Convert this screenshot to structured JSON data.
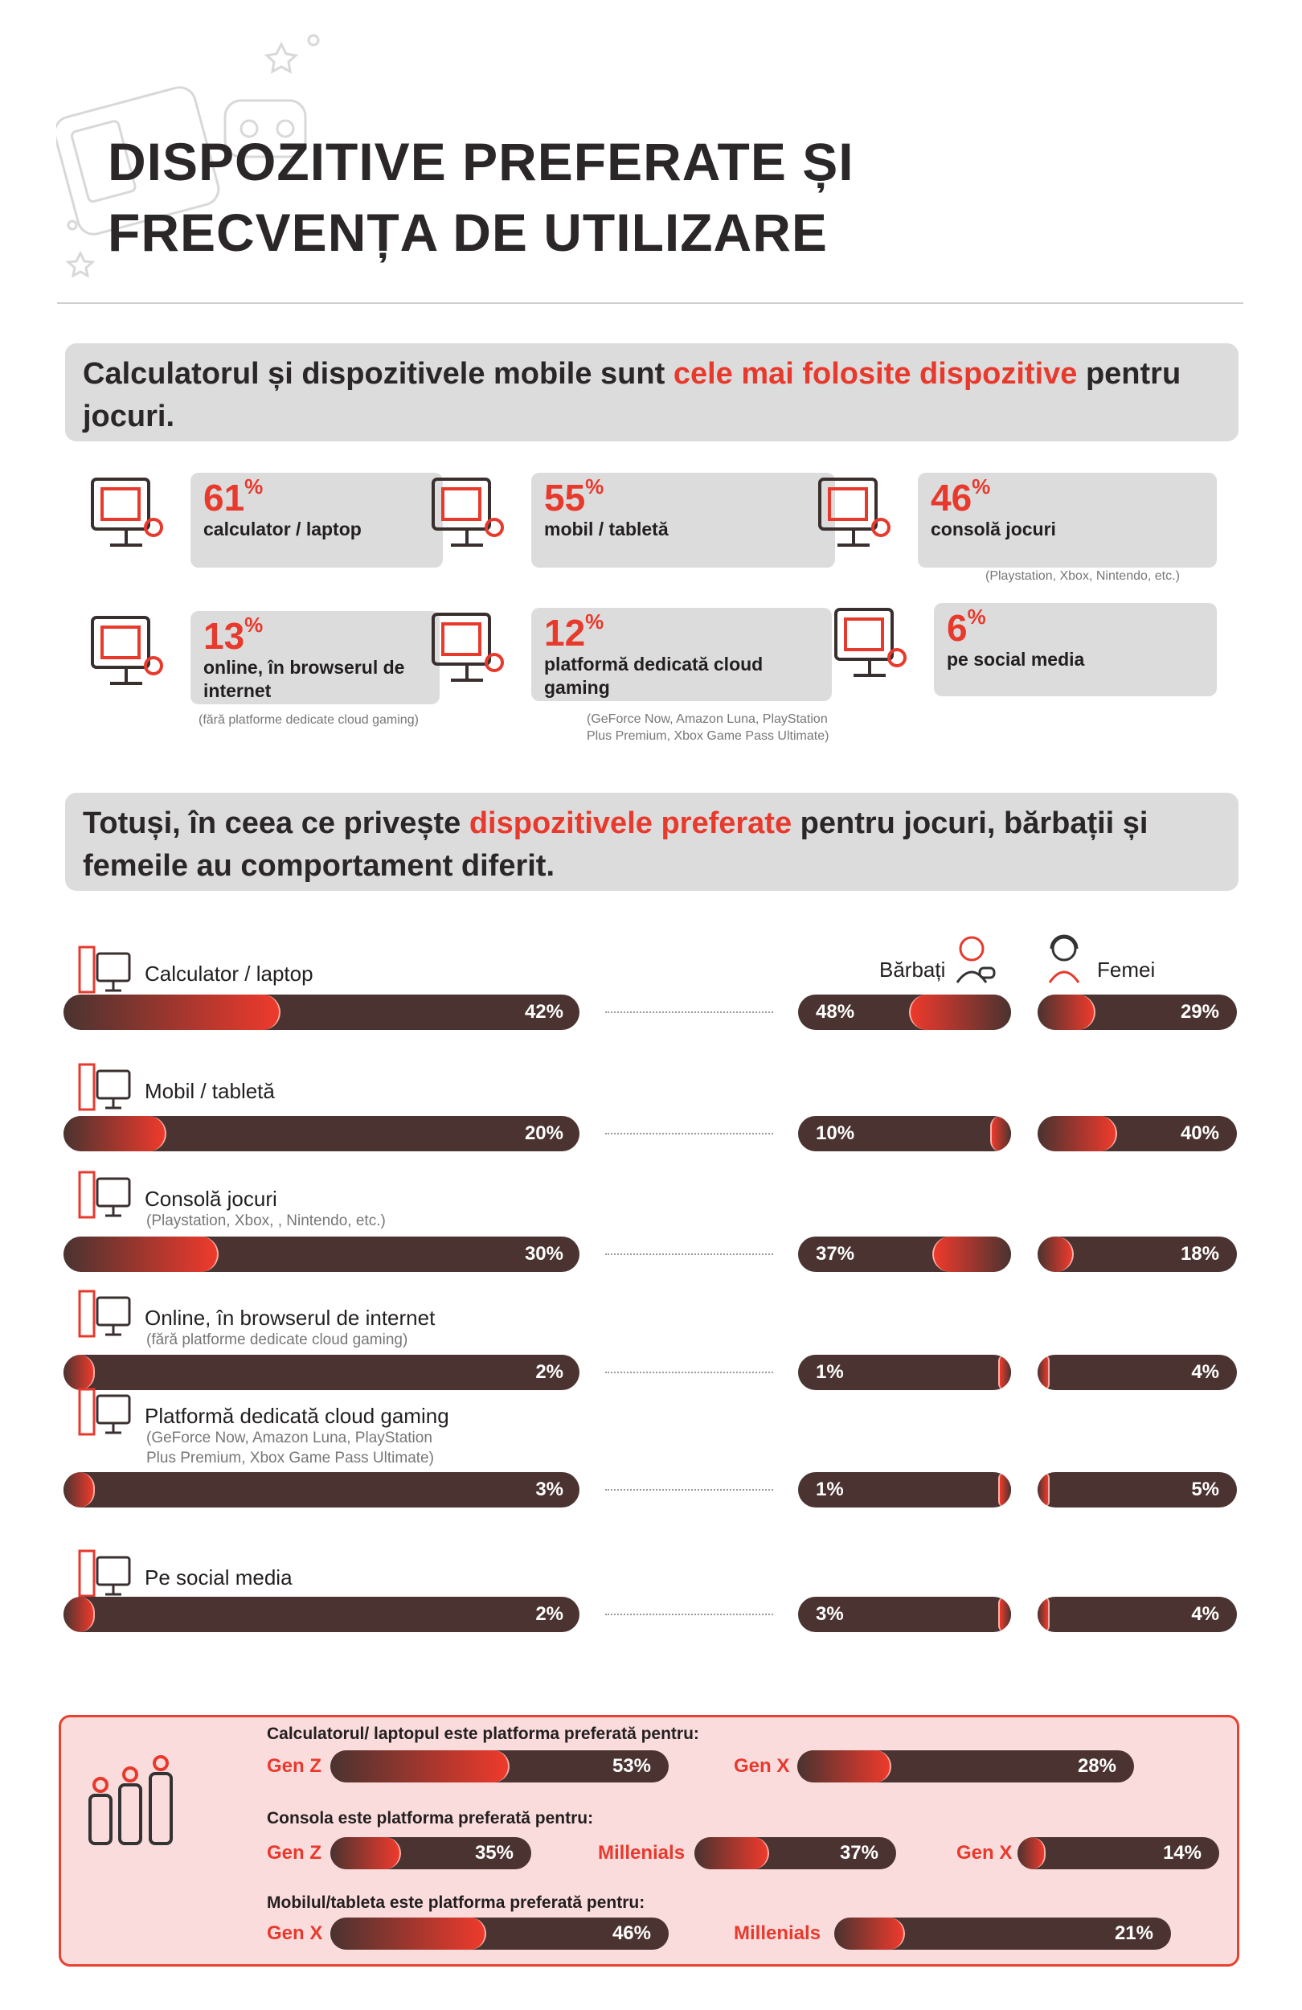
{
  "title": [
    "DISPOZITIVE PREFERATE ȘI",
    "FRECVENȚA DE UTILIZARE"
  ],
  "colors": {
    "accent": "#e8392d",
    "bar": "#4a3330",
    "panel": "#dcdcdc",
    "generation_box": "#fbdcdc"
  },
  "banner1": {
    "pre": "Calculatorul și dispozitivele mobile sunt ",
    "highlight": "cele mai folosite dispozitive",
    "post": " pentru jocuri."
  },
  "cards": [
    {
      "value": "61",
      "unit": "%",
      "label": "calculator / laptop",
      "note": "",
      "icon": "computer-icon"
    },
    {
      "value": "55",
      "unit": "%",
      "label": "mobil / tabletă",
      "note": "",
      "icon": "mobile-tablet-icon"
    },
    {
      "value": "46",
      "unit": "%",
      "label": "consolă jocuri",
      "note": "(Playstation, Xbox, Nintendo, etc.)",
      "icon": "console-icon"
    },
    {
      "value": "13",
      "unit": "%",
      "label": "online, în browserul de internet",
      "note": "(fără platforme dedicate cloud gaming)",
      "icon": "globe-gamepad-icon"
    },
    {
      "value": "12",
      "unit": "%",
      "label": "platformă dedicată cloud gaming",
      "note": "(GeForce Now, Amazon Luna, PlayStation Plus Premium, Xbox Game Pass Ultimate)",
      "icon": "cloud-gaming-icon"
    },
    {
      "value": "6",
      "unit": "%",
      "label": "pe social media",
      "note": "",
      "icon": "social-media-icon"
    }
  ],
  "banner2": {
    "pre": "Totuși, în ceea ce privește ",
    "highlight": "dispozitivele preferate",
    "post": " pentru jocuri, bărbații și femeile au comportament diferit."
  },
  "gender": {
    "men": "Bărbați",
    "women": "Femei"
  },
  "rows": [
    {
      "label": "Calculator / laptop",
      "sublabel": "",
      "total": 42,
      "total_text": "42%",
      "men": 48,
      "men_text": "48%",
      "women": 29,
      "women_text": "29%"
    },
    {
      "label": "Mobil / tabletă",
      "sublabel": "",
      "total": 20,
      "total_text": "20%",
      "men": 10,
      "men_text": "10%",
      "women": 40,
      "women_text": "40%"
    },
    {
      "label": "Consolă jocuri",
      "sublabel": "(Playstation, Xbox, , Nintendo, etc.)",
      "total": 30,
      "total_text": "30%",
      "men": 37,
      "men_text": "37%",
      "women": 18,
      "women_text": "18%"
    },
    {
      "label": "Online, în browserul de internet",
      "sublabel": "(fără platforme dedicate cloud gaming)",
      "total": 2,
      "total_text": "2%",
      "men": 1,
      "men_text": "1%",
      "women": 4,
      "women_text": "4%"
    },
    {
      "label": "Platformă dedicată cloud gaming",
      "sublabel": "(GeForce Now, Amazon Luna, PlayStation\nPlus Premium, Xbox Game Pass Ultimate)",
      "total": 3,
      "total_text": "3%",
      "men": 1,
      "men_text": "1%",
      "women": 5,
      "women_text": "5%"
    },
    {
      "label": "Pe social media",
      "sublabel": "",
      "total": 2,
      "total_text": "2%",
      "men": 3,
      "men_text": "3%",
      "women": 4,
      "women_text": "4%"
    }
  ],
  "generations": [
    {
      "heading": "Calculatorul/ laptopul este platforma preferată pentru:",
      "items": [
        {
          "label": "Gen Z",
          "value": 53,
          "text": "53%"
        },
        {
          "label": "Gen X",
          "value": 28,
          "text": "28%"
        }
      ]
    },
    {
      "heading": "Consola este platforma preferată pentru:",
      "items": [
        {
          "label": "Gen Z",
          "value": 35,
          "text": "35%"
        },
        {
          "label": "Millenials",
          "value": 37,
          "text": "37%"
        },
        {
          "label": "Gen X",
          "value": 14,
          "text": "14%"
        }
      ]
    },
    {
      "heading": "Mobilul/tableta este platforma preferată pentru:",
      "items": [
        {
          "label": "Gen X",
          "value": 46,
          "text": "46%"
        },
        {
          "label": "Millenials",
          "value": 21,
          "text": "21%"
        }
      ]
    }
  ]
}
